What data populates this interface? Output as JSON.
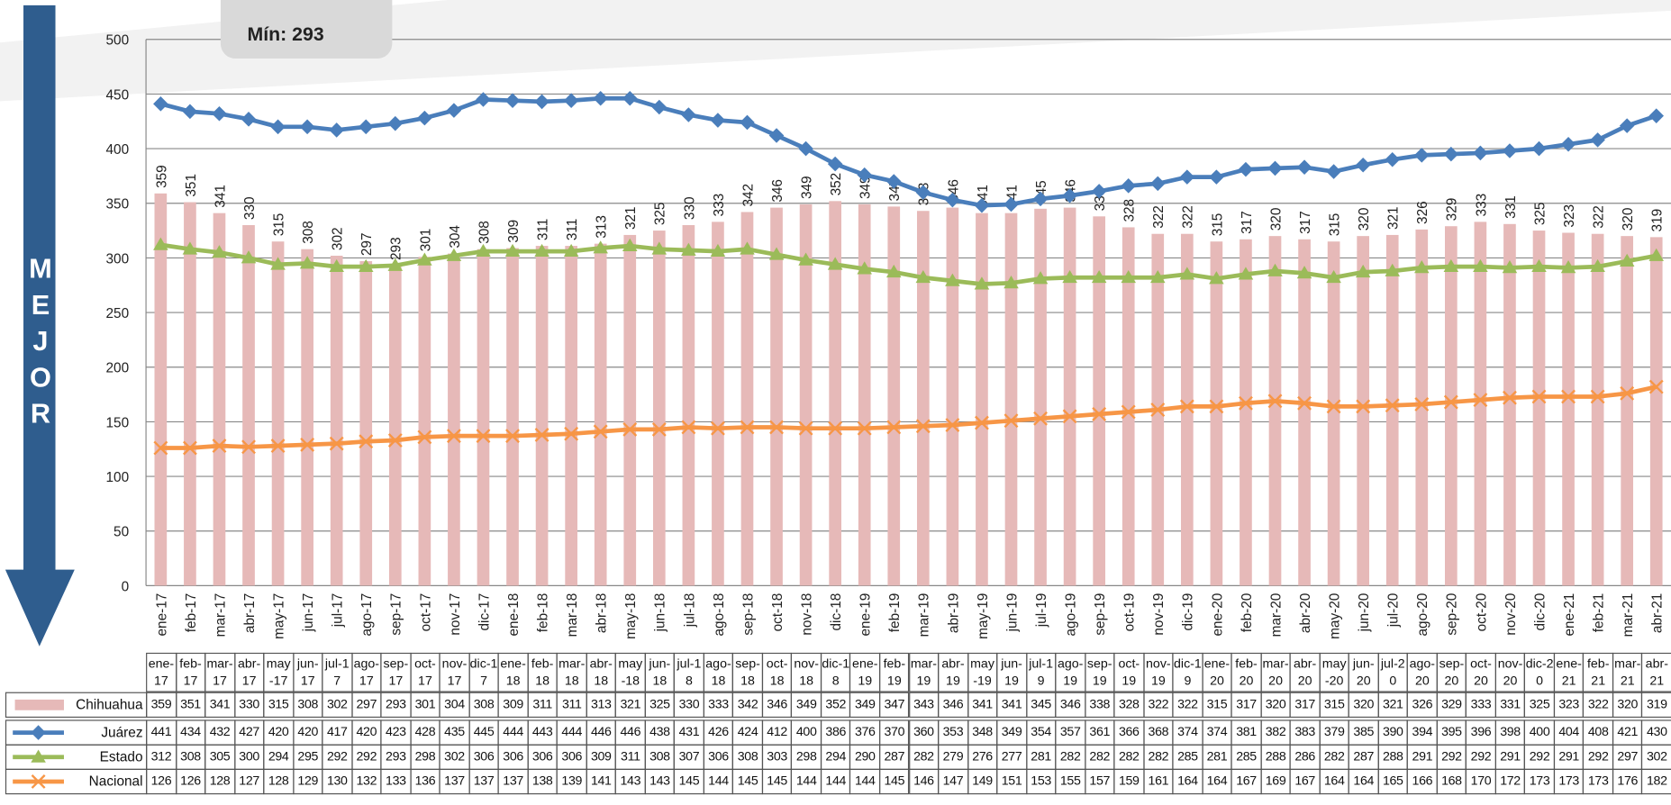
{
  "chart_data": {
    "type": "bar",
    "annotation": "Mín: 293",
    "side_label": "MEJOR",
    "categories": [
      "ene-17",
      "feb-17",
      "mar-17",
      "abr-17",
      "may-17",
      "jun-17",
      "jul-17",
      "ago-17",
      "sep-17",
      "oct-17",
      "nov-17",
      "dic-17",
      "ene-18",
      "feb-18",
      "mar-18",
      "abr-18",
      "may-18",
      "jun-18",
      "jul-18",
      "ago-18",
      "sep-18",
      "oct-18",
      "nov-18",
      "dic-18",
      "ene-19",
      "feb-19",
      "mar-19",
      "abr-19",
      "may-19",
      "jun-19",
      "jul-19",
      "ago-19",
      "sep-19",
      "oct-19",
      "nov-19",
      "dic-19",
      "ene-20",
      "feb-20",
      "mar-20",
      "abr-20",
      "may-20",
      "jun-20",
      "jul-20",
      "ago-20",
      "sep-20",
      "oct-20",
      "nov-20",
      "dic-20",
      "ene-21",
      "feb-21",
      "mar-21",
      "abr-21"
    ],
    "series": [
      {
        "name": "Chihuahua",
        "type": "bar",
        "color": "#e6b9b8",
        "values": [
          359,
          351,
          341,
          330,
          315,
          308,
          302,
          297,
          293,
          301,
          304,
          308,
          309,
          311,
          311,
          313,
          321,
          325,
          330,
          333,
          342,
          346,
          349,
          352,
          349,
          347,
          343,
          346,
          341,
          341,
          345,
          346,
          338,
          328,
          322,
          322,
          315,
          317,
          320,
          317,
          315,
          320,
          321,
          326,
          329,
          333,
          331,
          325,
          323,
          322,
          320,
          319
        ]
      },
      {
        "name": "Juárez",
        "type": "line",
        "marker": "diamond",
        "color": "#4a7ebb",
        "values": [
          441,
          434,
          432,
          427,
          420,
          420,
          417,
          420,
          423,
          428,
          435,
          445,
          444,
          443,
          444,
          446,
          446,
          438,
          431,
          426,
          424,
          412,
          400,
          386,
          376,
          370,
          360,
          353,
          348,
          349,
          354,
          357,
          361,
          366,
          368,
          374,
          374,
          381,
          382,
          383,
          379,
          385,
          390,
          394,
          395,
          396,
          398,
          400,
          404,
          408,
          421,
          430
        ]
      },
      {
        "name": "Estado",
        "type": "line",
        "marker": "triangle",
        "color": "#9bbb59",
        "values": [
          312,
          308,
          305,
          300,
          294,
          295,
          292,
          292,
          293,
          298,
          302,
          306,
          306,
          306,
          306,
          309,
          311,
          308,
          307,
          306,
          308,
          303,
          298,
          294,
          290,
          287,
          282,
          279,
          276,
          277,
          281,
          282,
          282,
          282,
          282,
          285,
          281,
          285,
          288,
          286,
          282,
          287,
          288,
          291,
          292,
          292,
          291,
          292,
          291,
          292,
          297,
          302
        ]
      },
      {
        "name": "Nacional",
        "type": "line",
        "marker": "x",
        "color": "#f79646",
        "values": [
          126,
          126,
          128,
          127,
          128,
          129,
          130,
          132,
          133,
          136,
          137,
          137,
          137,
          138,
          139,
          141,
          143,
          143,
          145,
          144,
          145,
          145,
          144,
          144,
          144,
          145,
          146,
          147,
          149,
          151,
          153,
          155,
          157,
          159,
          161,
          164,
          164,
          167,
          169,
          167,
          164,
          164,
          165,
          166,
          168,
          170,
          172,
          173,
          173,
          173,
          176,
          182
        ]
      }
    ],
    "ylim": [
      0,
      500
    ],
    "yticks": [
      0,
      50,
      100,
      150,
      200,
      250,
      300,
      350,
      400,
      450,
      500
    ],
    "grid": true
  }
}
